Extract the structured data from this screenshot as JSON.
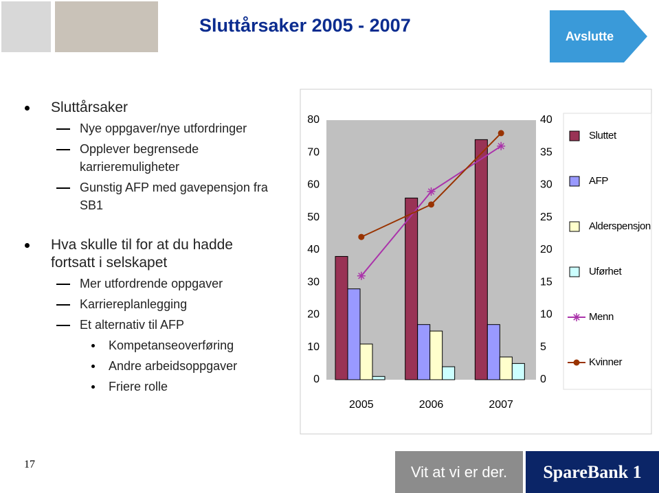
{
  "header": {
    "title": "Sluttårsaker 2005 - 2007",
    "button": "Avslutte"
  },
  "bullets": [
    {
      "level": 0,
      "text": "Sluttårsaker"
    },
    {
      "level": 1,
      "text": "Nye oppgaver/nye utfordringer"
    },
    {
      "level": 1,
      "text": "Opplever begrensede karrieremuligheter"
    },
    {
      "level": 1,
      "text": "Gunstig AFP med gavepensjon fra SB1"
    },
    {
      "level": 0,
      "text": "Hva skulle til for at du hadde fortsatt i selskapet"
    },
    {
      "level": 1,
      "text": "Mer utfordrende oppgaver"
    },
    {
      "level": 1,
      "text": "Karriereplanlegging"
    },
    {
      "level": 1,
      "text": "Et alternativ til AFP"
    },
    {
      "level": 2,
      "text": "Kompetanseoverføring"
    },
    {
      "level": 2,
      "text": "Andre arbeidsoppgaver"
    },
    {
      "level": 2,
      "text": "Friere rolle"
    }
  ],
  "chart_data": {
    "type": "bar",
    "categories": [
      "2005",
      "2006",
      "2007"
    ],
    "ylim": [
      0,
      80
    ],
    "yticks": [
      0,
      10,
      20,
      30,
      40,
      50,
      60,
      70,
      80
    ],
    "y2lim": [
      0,
      40
    ],
    "y2ticks": [
      0,
      5,
      10,
      15,
      20,
      25,
      30,
      35,
      40
    ],
    "series": [
      {
        "name": "Sluttet",
        "color": "#993355",
        "values": [
          38,
          56,
          74
        ]
      },
      {
        "name": "AFP",
        "color": "#9999ff",
        "values": [
          28,
          17,
          17
        ]
      },
      {
        "name": "Alderspensjon",
        "color": "#ffffcc",
        "values": [
          11,
          15,
          7
        ]
      },
      {
        "name": "Uførhet",
        "color": "#ccffff",
        "values": [
          1,
          4,
          5
        ]
      },
      {
        "name": "Menn",
        "color": "#aa33aa",
        "type": "line",
        "marker": "star",
        "axis": "y2",
        "values": [
          16,
          29,
          36
        ]
      },
      {
        "name": "Kvinner",
        "color": "#993300",
        "type": "line",
        "marker": "circle",
        "axis": "y2",
        "values": [
          22,
          27,
          38
        ]
      }
    ]
  },
  "footer": {
    "page": "17",
    "slogan": "Vit at vi er der.",
    "brand": "SpareBank 1"
  }
}
